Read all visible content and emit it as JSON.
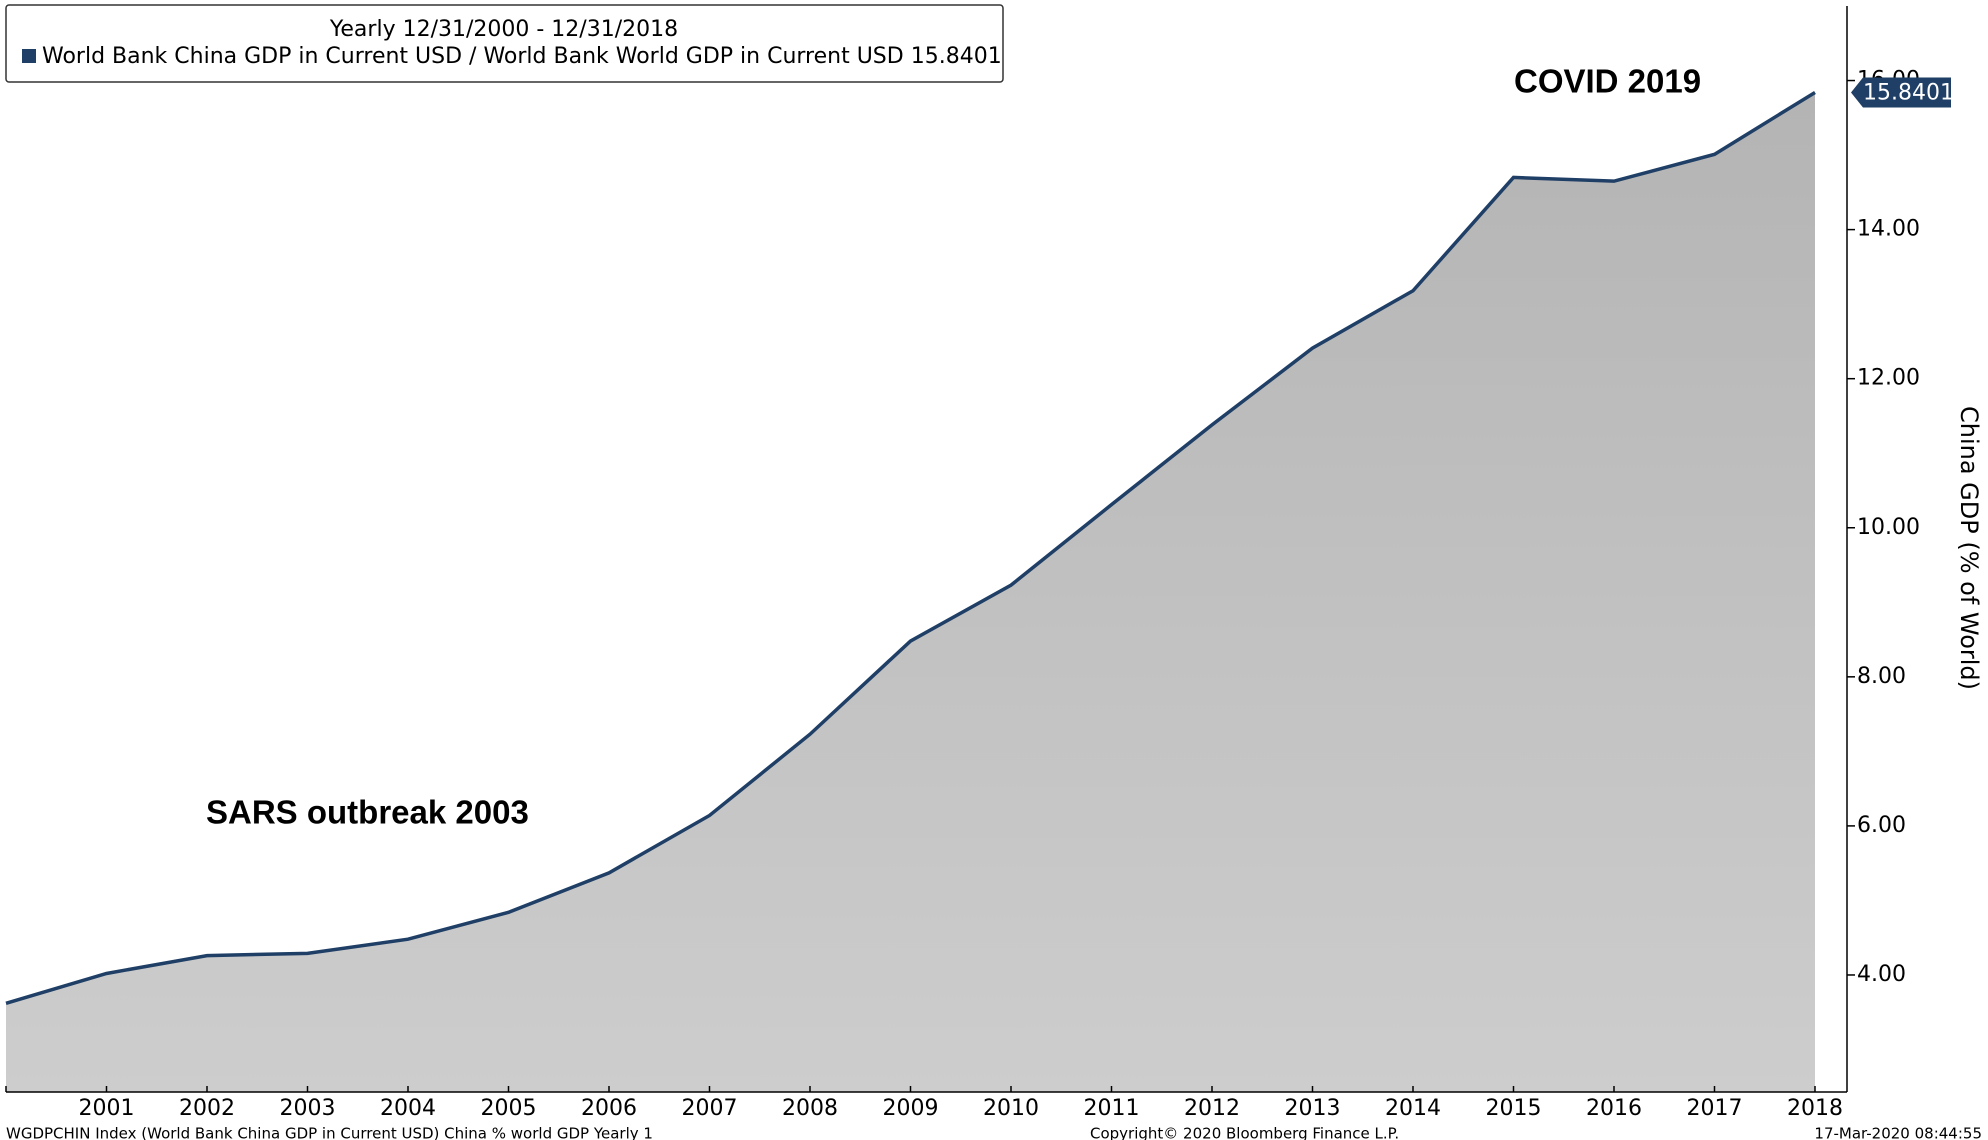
{
  "chart_data": {
    "type": "area",
    "legend_header": "Yearly 12/31/2000 - 12/31/2018",
    "y_label": "China GDP (% of World)",
    "annotations": [
      "SARS outbreak 2003",
      "COVID 2019"
    ],
    "footer_left": "WGDPCHIN Index (World Bank China GDP in Current USD) China % world GDP  Yearly 1",
    "footer_center": "Copyright© 2020 Bloomberg Finance L.P.",
    "footer_right": "17-Mar-2020 08:44:55",
    "categories": [
      null,
      "2001",
      "2002",
      "2003",
      "2004",
      "2005",
      "2006",
      "2007",
      "2008",
      "2009",
      "2010",
      "2011",
      "2012",
      "2013",
      "2014",
      "2015",
      "2016",
      "2017",
      "2018"
    ],
    "series": [
      {
        "name": "World Bank China GDP in Current USD / World Bank World GDP in Current USD",
        "color": "#1f3f66",
        "values": [
          3.62,
          4.02,
          4.26,
          4.29,
          4.48,
          4.84,
          5.37,
          6.14,
          7.23,
          8.48,
          9.23,
          10.31,
          11.38,
          12.41,
          13.18,
          14.7,
          14.65,
          15.01,
          15.8401
        ],
        "value_labels": [
          null,
          null,
          null,
          null,
          null,
          null,
          null,
          null,
          null,
          null,
          null,
          null,
          null,
          null,
          null,
          null,
          null,
          null,
          "15.8401"
        ]
      }
    ],
    "ylim": [
      2.43,
      17
    ],
    "yticks": [
      {
        "value": 4,
        "label": "4.00"
      },
      {
        "value": 6,
        "label": "6.00"
      },
      {
        "value": 8,
        "label": "8.00"
      },
      {
        "value": 10,
        "label": "10.00"
      },
      {
        "value": 12,
        "label": "12.00"
      },
      {
        "value": 14,
        "label": "14.00"
      },
      {
        "value": 16,
        "label": "16.00"
      }
    ],
    "fill": "#c4c4c4"
  }
}
